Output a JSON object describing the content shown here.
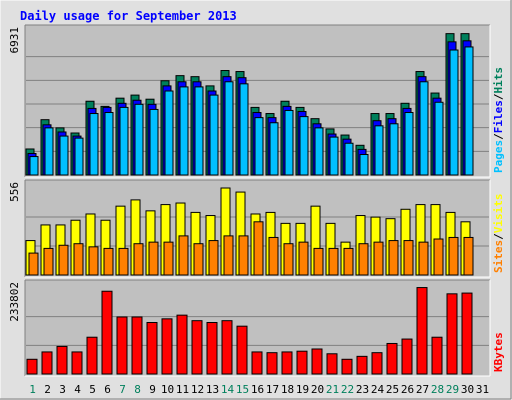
{
  "title": "Daily usage for September 2013",
  "colors": {
    "background": "#E0E0E0",
    "panel": "#C0C0C0",
    "title": "#0000FF",
    "hits": "#00805C",
    "files": "#0000FF",
    "pages": "#00C0FF",
    "visits": "#FFFF00",
    "sites": "#FF8000",
    "kbytes": "#FF0000",
    "weekend_label": "#00805C",
    "weekday_label": "#000000"
  },
  "chart_data": [
    {
      "type": "bar",
      "panel": "hits-files-pages",
      "ymax_label": "6931",
      "ylim": [
        0,
        6931
      ],
      "right_label": {
        "pages": "Pages",
        "files": "Files",
        "hits": "Hits",
        "sep": "/"
      },
      "categories": [
        "1",
        "2",
        "3",
        "4",
        "5",
        "6",
        "7",
        "8",
        "9",
        "10",
        "11",
        "12",
        "13",
        "14",
        "15",
        "16",
        "17",
        "18",
        "19",
        "20",
        "21",
        "22",
        "23",
        "24",
        "25",
        "26",
        "27",
        "28",
        "29",
        "30",
        "31"
      ],
      "series": [
        {
          "name": "Hits",
          "values": [
            1270,
            2700,
            2300,
            2050,
            3600,
            3350,
            3750,
            3900,
            3700,
            4600,
            4850,
            4800,
            4350,
            5100,
            5050,
            3300,
            3000,
            3600,
            3300,
            2750,
            2250,
            1950,
            1450,
            3000,
            3000,
            3500,
            5050,
            4000,
            6900,
            6900,
            0
          ]
        },
        {
          "name": "Files",
          "values": [
            1050,
            2450,
            2100,
            1900,
            3250,
            3300,
            3500,
            3650,
            3450,
            4350,
            4550,
            4550,
            4100,
            4800,
            4750,
            3050,
            2800,
            3350,
            3100,
            2500,
            2000,
            1750,
            1250,
            2650,
            2750,
            3250,
            4800,
            3750,
            6500,
            6550,
            0
          ]
        },
        {
          "name": "Pages",
          "values": [
            900,
            2300,
            1900,
            1800,
            3000,
            3050,
            3300,
            3450,
            3200,
            4100,
            4300,
            4300,
            3900,
            4550,
            4450,
            2800,
            2550,
            3150,
            2850,
            2300,
            1850,
            1550,
            1000,
            2400,
            2500,
            3050,
            4550,
            3550,
            6100,
            6250,
            0
          ]
        }
      ]
    },
    {
      "type": "bar",
      "panel": "visits-sites",
      "ymax_label": "556",
      "ylim": [
        0,
        556
      ],
      "right_label": {
        "sites": "Sites",
        "visits": "Visits",
        "sep": "/"
      },
      "categories": [
        "1",
        "2",
        "3",
        "4",
        "5",
        "6",
        "7",
        "8",
        "9",
        "10",
        "11",
        "12",
        "13",
        "14",
        "15",
        "16",
        "17",
        "18",
        "19",
        "20",
        "21",
        "22",
        "23",
        "24",
        "25",
        "26",
        "27",
        "28",
        "29",
        "30",
        "31"
      ],
      "series": [
        {
          "name": "Visits",
          "values": [
            220,
            320,
            320,
            350,
            390,
            350,
            440,
            480,
            410,
            450,
            460,
            400,
            380,
            556,
            530,
            390,
            400,
            330,
            330,
            440,
            330,
            210,
            380,
            370,
            360,
            420,
            450,
            450,
            400,
            340,
            0
          ]
        },
        {
          "name": "Sites",
          "values": [
            140,
            170,
            190,
            200,
            180,
            170,
            170,
            200,
            210,
            210,
            250,
            200,
            220,
            250,
            250,
            340,
            240,
            200,
            210,
            170,
            170,
            170,
            200,
            210,
            220,
            220,
            210,
            230,
            240,
            240,
            0
          ]
        }
      ]
    },
    {
      "type": "bar",
      "panel": "kbytes",
      "ymax_label": "233802",
      "ylim": [
        0,
        233802
      ],
      "right_label": {
        "kbytes": "KBytes"
      },
      "categories": [
        "1",
        "2",
        "3",
        "4",
        "5",
        "6",
        "7",
        "8",
        "9",
        "10",
        "11",
        "12",
        "13",
        "14",
        "15",
        "16",
        "17",
        "18",
        "19",
        "20",
        "21",
        "22",
        "23",
        "24",
        "25",
        "26",
        "27",
        "28",
        "29",
        "30",
        "31"
      ],
      "series": [
        {
          "name": "KBytes",
          "values": [
            40000,
            60000,
            75000,
            60000,
            100000,
            225000,
            155000,
            155000,
            140000,
            150000,
            160000,
            145000,
            140000,
            145000,
            130000,
            60000,
            58000,
            60000,
            62000,
            68000,
            55000,
            40000,
            48000,
            58000,
            83000,
            95000,
            235000,
            100000,
            218000,
            220000,
            0
          ]
        }
      ]
    }
  ],
  "x_labels": [
    {
      "text": "1",
      "weekend": true
    },
    {
      "text": "2",
      "weekend": false
    },
    {
      "text": "3",
      "weekend": false
    },
    {
      "text": "4",
      "weekend": false
    },
    {
      "text": "5",
      "weekend": false
    },
    {
      "text": "6",
      "weekend": false
    },
    {
      "text": "7",
      "weekend": true
    },
    {
      "text": "8",
      "weekend": true
    },
    {
      "text": "9",
      "weekend": false
    },
    {
      "text": "10",
      "weekend": false
    },
    {
      "text": "11",
      "weekend": false
    },
    {
      "text": "12",
      "weekend": false
    },
    {
      "text": "13",
      "weekend": false
    },
    {
      "text": "14",
      "weekend": true
    },
    {
      "text": "15",
      "weekend": true
    },
    {
      "text": "16",
      "weekend": false
    },
    {
      "text": "17",
      "weekend": false
    },
    {
      "text": "18",
      "weekend": false
    },
    {
      "text": "19",
      "weekend": false
    },
    {
      "text": "20",
      "weekend": false
    },
    {
      "text": "21",
      "weekend": true
    },
    {
      "text": "22",
      "weekend": true
    },
    {
      "text": "23",
      "weekend": false
    },
    {
      "text": "24",
      "weekend": false
    },
    {
      "text": "25",
      "weekend": false
    },
    {
      "text": "26",
      "weekend": false
    },
    {
      "text": "27",
      "weekend": false
    },
    {
      "text": "28",
      "weekend": true
    },
    {
      "text": "29",
      "weekend": true
    },
    {
      "text": "30",
      "weekend": false
    },
    {
      "text": "31",
      "weekend": false
    }
  ]
}
